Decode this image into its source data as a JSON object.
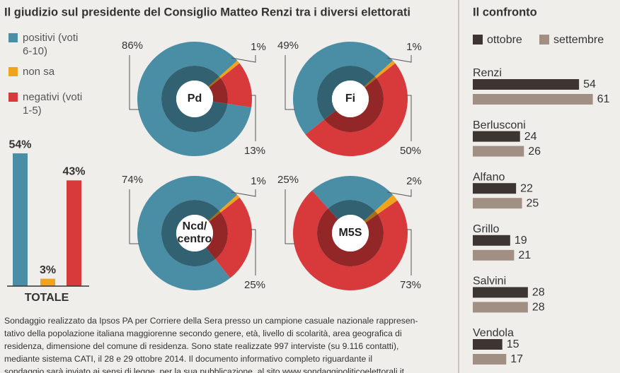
{
  "title": "Il giudizio sul presidente del Consiglio Matteo Renzi tra i diversi elettorati",
  "footnote": [
    "Sondaggio realizzato da Ipsos PA per Corriere della Sera presso un campione casuale nazionale rappresen-",
    "tativo della popolazione italiana maggiorenne secondo genere, età, livello di scolarità, area geografica di",
    "residenza, dimensione del comune di residenza. Sono state realizzate 997 interviste (su 9.116 contatti),",
    "mediante sistema CATI, il 28 e 29 ottobre 2014. Il documento informativo completo riguardante il",
    "sondaggio sarà inviato ai sensi di legge, per la sua pubblicazione, al sito www.sondaggipoliticoelettorali.it."
  ],
  "chart_data": [
    {
      "type": "bar",
      "categories": [
        "TOTALE"
      ],
      "series": [
        {
          "name": "positivi (voti 6-10)",
          "color": "#4a8ea6",
          "values": [
            54
          ],
          "value_labels": [
            "54%"
          ]
        },
        {
          "name": "non sa",
          "color": "#f0a31c",
          "values": [
            3
          ],
          "value_labels": [
            "3%"
          ]
        },
        {
          "name": "negativi (voti 1-5)",
          "color": "#d8393b",
          "values": [
            43
          ],
          "value_labels": [
            "43%"
          ]
        }
      ]
    },
    {
      "type": "pie",
      "label": "Pd",
      "values": [
        86,
        1,
        13
      ],
      "value_labels": [
        "86%",
        "1%",
        "13%"
      ],
      "colors": [
        "#4a8ea6",
        "#f0a31c",
        "#d8393b"
      ]
    },
    {
      "type": "pie",
      "label": "Fi",
      "values": [
        49,
        1,
        50
      ],
      "value_labels": [
        "49%",
        "1%",
        "50%"
      ],
      "colors": [
        "#4a8ea6",
        "#f0a31c",
        "#d8393b"
      ]
    },
    {
      "type": "pie",
      "label": "Ncd/ centro",
      "values": [
        74,
        1,
        25
      ],
      "value_labels": [
        "74%",
        "1%",
        "25%"
      ],
      "colors": [
        "#4a8ea6",
        "#f0a31c",
        "#d8393b"
      ]
    },
    {
      "type": "pie",
      "label": "M5S",
      "values": [
        25,
        2,
        73
      ],
      "value_labels": [
        "25%",
        "2%",
        "73%"
      ],
      "colors": [
        "#4a8ea6",
        "#f0a31c",
        "#d8393b"
      ]
    },
    {
      "type": "bar",
      "orientation": "horizontal",
      "title": "Il confronto",
      "categories": [
        "Renzi",
        "Berlusconi",
        "Alfano",
        "Grillo",
        "Salvini",
        "Vendola"
      ],
      "series": [
        {
          "name": "ottobre",
          "color": "#3d3531",
          "values": [
            54,
            24,
            22,
            19,
            28,
            15
          ]
        },
        {
          "name": "settembre",
          "color": "#a28f84",
          "values": [
            61,
            26,
            25,
            21,
            28,
            17
          ]
        }
      ]
    }
  ]
}
